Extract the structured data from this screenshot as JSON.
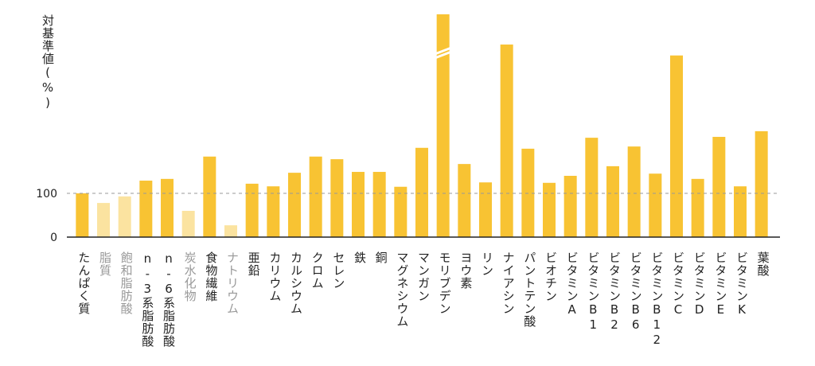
{
  "chart_data": {
    "type": "bar",
    "y_label": "対基準値(%)",
    "categories": [
      "たんぱく質",
      "脂質",
      "飽和脂肪酸",
      "n-3系脂肪酸",
      "n-6系脂肪酸",
      "炭水化物",
      "食物繊維",
      "ナトリウム",
      "亜鉛",
      "カリウム",
      "カルシウム",
      "クロム",
      "セレン",
      "鉄",
      "銅",
      "マグネシウム",
      "マンガン",
      "モリブデン",
      "ヨウ素",
      "リン",
      "ナイアシン",
      "パントテン酸",
      "ビオチン",
      "ビタミンA",
      "ビタミンB1",
      "ビタミンB2",
      "ビタミンB6",
      "ビタミンB12",
      "ビタミンC",
      "ビタミンD",
      "ビタミンE",
      "ビタミンK",
      "葉酸"
    ],
    "values": [
      100,
      78,
      93,
      129,
      133,
      60,
      184,
      27,
      122,
      116,
      147,
      184,
      178,
      149,
      149,
      115,
      204,
      509,
      167,
      125,
      440,
      202,
      124,
      140,
      227,
      162,
      207,
      145,
      415,
      133,
      229,
      116,
      242
    ],
    "colors": [
      "#f8c333",
      "#fbe3a0",
      "#fbe3a0",
      "#f8c333",
      "#f8c333",
      "#fbe3a0",
      "#f8c333",
      "#fbe3a0",
      "#f8c333",
      "#f8c333",
      "#f8c333",
      "#f8c333",
      "#f8c333",
      "#f8c333",
      "#f8c333",
      "#f8c333",
      "#f8c333",
      "#f8c333",
      "#f8c333",
      "#f8c333",
      "#f8c333",
      "#f8c333",
      "#f8c333",
      "#f8c333",
      "#f8c333",
      "#f8c333",
      "#f8c333",
      "#f8c333",
      "#f8c333",
      "#f8c333",
      "#f8c333",
      "#f8c333",
      "#f8c333"
    ],
    "label_colors": [
      "#222",
      "#999",
      "#999",
      "#222",
      "#222",
      "#999",
      "#222",
      "#999",
      "#222",
      "#222",
      "#222",
      "#222",
      "#222",
      "#222",
      "#222",
      "#222",
      "#222",
      "#222",
      "#222",
      "#222",
      "#222",
      "#222",
      "#222",
      "#222",
      "#222",
      "#222",
      "#222",
      "#222",
      "#222",
      "#222",
      "#222",
      "#222",
      "#222"
    ],
    "ylim": [
      0,
      509
    ],
    "yticks": [
      0,
      100
    ],
    "reference_line": 100
  }
}
